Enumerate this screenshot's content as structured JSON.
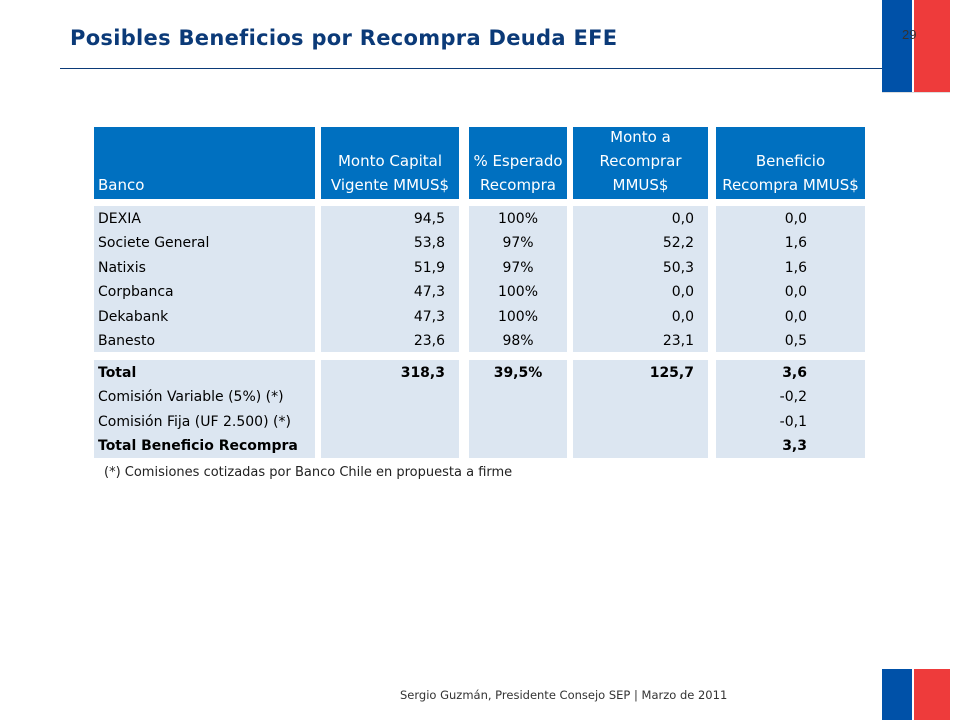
{
  "page": {
    "title": "Posibles Beneficios por Recompra Deuda EFE",
    "number": "29",
    "footer": "Sergio Guzmán, Presidente Consejo SEP | Marzo de 2011",
    "footnote": "(*) Comisiones cotizadas por Banco Chile en propuesta a firme"
  },
  "colors": {
    "header": "#0070c0",
    "body": "#dce6f1",
    "title": "#0b3a78",
    "flag_blue": "#0051a8",
    "flag_red": "#ee3b3b"
  },
  "table": {
    "headers": [
      [
        "Banco"
      ],
      [
        "Monto Capital",
        "Vigente MMUS$"
      ],
      [
        "% Esperado",
        "Recompra"
      ],
      [
        "Monto a",
        "Recomprar",
        "MMUS$"
      ],
      [
        "Beneficio",
        "Recompra MMUS$"
      ]
    ],
    "rows": [
      [
        "DEXIA",
        "94,5",
        "100%",
        "0,0",
        "0,0"
      ],
      [
        "Societe General",
        "53,8",
        "97%",
        "52,2",
        "1,6"
      ],
      [
        "Natixis",
        "51,9",
        "97%",
        "50,3",
        "1,6"
      ],
      [
        "Corpbanca",
        "47,3",
        "100%",
        "0,0",
        "0,0"
      ],
      [
        "Dekabank",
        "47,3",
        "100%",
        "0,0",
        "0,0"
      ],
      [
        "Banesto",
        "23,6",
        "98%",
        "23,1",
        "0,5"
      ]
    ],
    "summary": [
      [
        "Total",
        "318,3",
        "39,5%",
        "125,7",
        "3,6"
      ],
      [
        "Comisión Variable (5%) (*)",
        "",
        "",
        "",
        "-0,2"
      ],
      [
        "Comisión Fija (UF 2.500) (*)",
        "",
        "",
        "",
        "-0,1"
      ],
      [
        "Total Beneficio Recompra",
        "",
        "",
        "",
        "3,3"
      ]
    ],
    "bold_summary_rows": [
      0,
      3
    ]
  }
}
